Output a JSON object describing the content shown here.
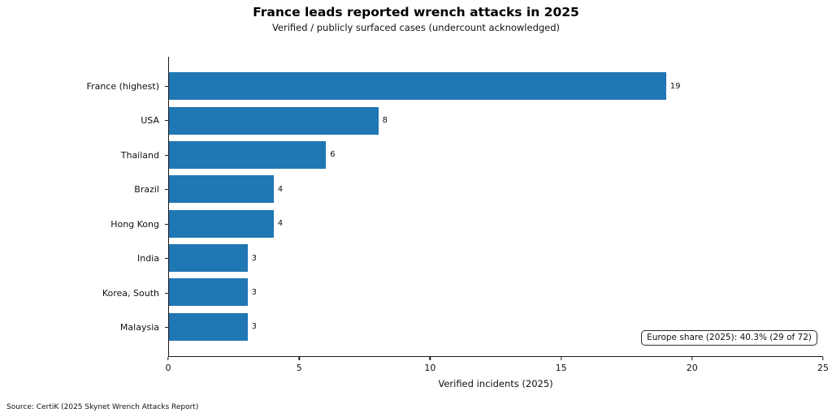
{
  "title": "France leads reported wrench attacks in 2025",
  "subtitle": "Verified / publicly surfaced cases (undercount acknowledged)",
  "annotation": "Europe share (2025): 40.3% (29 of 72)",
  "source": "Source: CertiK (2025 Skynet Wrench Attacks Report)",
  "chart_data": {
    "type": "bar",
    "orientation": "horizontal",
    "title": "France leads reported wrench attacks in 2025",
    "subtitle": "Verified / publicly surfaced cases (undercount acknowledged)",
    "categories": [
      "France (highest)",
      "USA",
      "Thailand",
      "Brazil",
      "Hong Kong",
      "India",
      "Korea, South",
      "Malaysia"
    ],
    "values": [
      19,
      8,
      6,
      4,
      4,
      3,
      3,
      3
    ],
    "xlabel": "Verified incidents (2025)",
    "ylabel": "",
    "xlim": [
      0,
      25
    ],
    "xticks": [
      0,
      5,
      10,
      15,
      20,
      25
    ],
    "bar_color": "#1f77b4",
    "grid": false,
    "legend": false,
    "annotation": "Europe share (2025): 40.3% (29 of 72)"
  }
}
